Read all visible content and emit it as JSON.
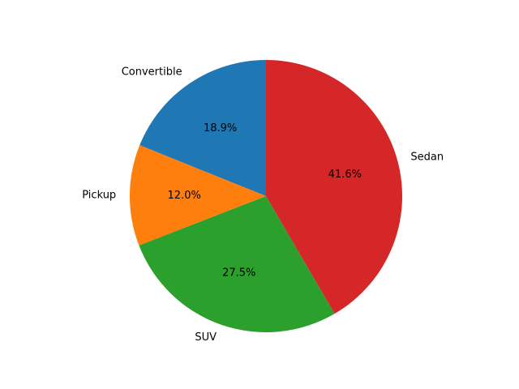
{
  "chart_data": {
    "type": "pie",
    "title": "",
    "categories": [
      "Convertible",
      "Pickup",
      "SUV",
      "Sedan"
    ],
    "values": [
      18.9,
      12.0,
      27.5,
      41.6
    ],
    "percent_labels": [
      "18.9%",
      "12.0%",
      "27.5%",
      "41.6%"
    ],
    "colors": [
      "#1f77b4",
      "#ff7f0e",
      "#2ca02c",
      "#d62728"
    ],
    "start_angle_deg": 90,
    "direction": "counterclockwise",
    "legend": "none"
  }
}
